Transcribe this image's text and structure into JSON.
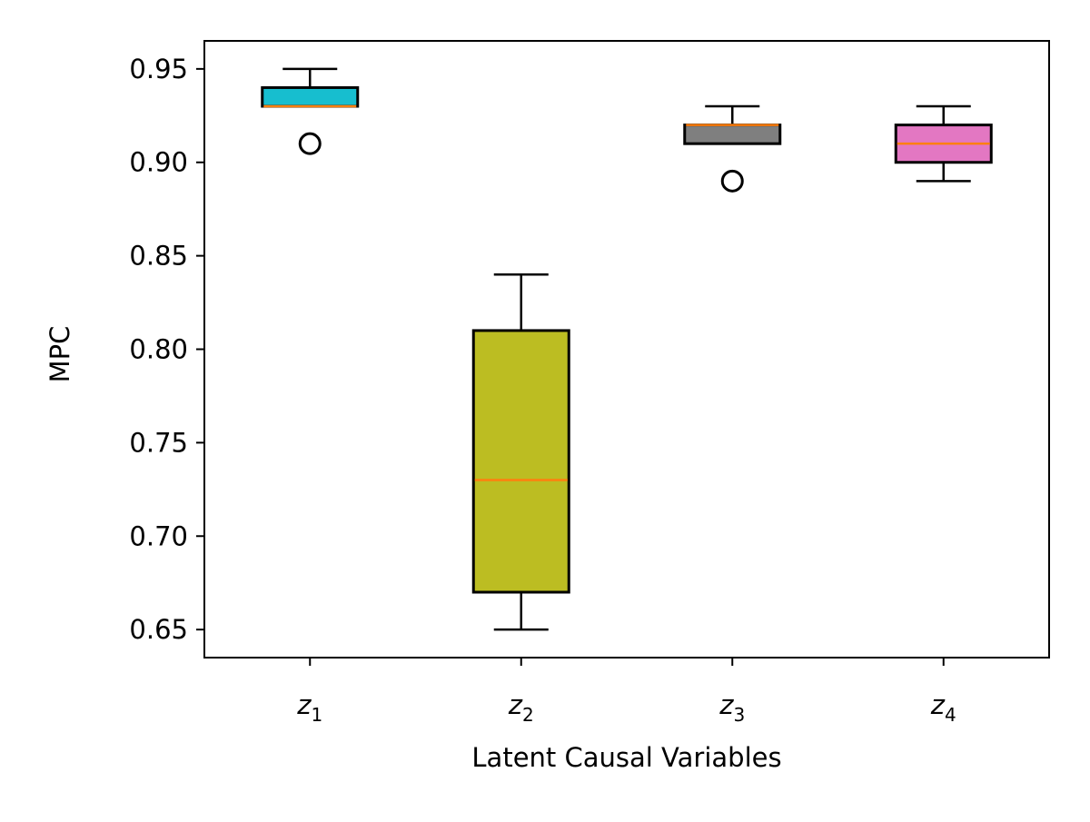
{
  "chart_data": {
    "type": "boxplot",
    "title": "",
    "xlabel": "Latent Causal Variables",
    "ylabel": "MPC",
    "ylim": [
      0.635,
      0.965
    ],
    "yticks": [
      0.65,
      0.7,
      0.75,
      0.8,
      0.85,
      0.9,
      0.95
    ],
    "ytick_labels": [
      "0.65",
      "0.70",
      "0.75",
      "0.80",
      "0.85",
      "0.90",
      "0.95"
    ],
    "grid": false,
    "median_color": "#ff7f0e",
    "categories": [
      {
        "base": "z",
        "sub": "1",
        "color": "#17becf",
        "whisker_low": 0.93,
        "q1": 0.93,
        "median": 0.93,
        "q3": 0.94,
        "whisker_high": 0.95,
        "outliers": [
          0.91
        ]
      },
      {
        "base": "z",
        "sub": "2",
        "color": "#bcbd22",
        "whisker_low": 0.65,
        "q1": 0.67,
        "median": 0.73,
        "q3": 0.81,
        "whisker_high": 0.84,
        "outliers": []
      },
      {
        "base": "z",
        "sub": "3",
        "color": "#7f7f7f",
        "whisker_low": 0.91,
        "q1": 0.91,
        "median": 0.92,
        "q3": 0.92,
        "whisker_high": 0.93,
        "outliers": [
          0.89
        ]
      },
      {
        "base": "z",
        "sub": "4",
        "color": "#e377c2",
        "whisker_low": 0.89,
        "q1": 0.9,
        "median": 0.91,
        "q3": 0.92,
        "whisker_high": 0.93,
        "outliers": []
      }
    ]
  }
}
